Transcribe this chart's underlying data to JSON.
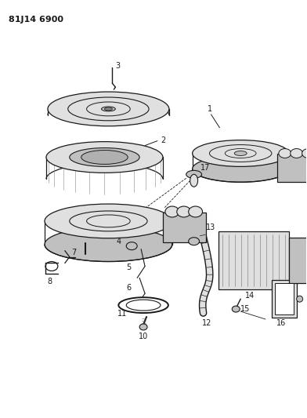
{
  "title": "81J14 6900",
  "bg_color": "#ffffff",
  "line_color": "#1a1a1a",
  "gray_light": "#e0e0e0",
  "gray_mid": "#c0c0c0",
  "gray_dark": "#909090"
}
